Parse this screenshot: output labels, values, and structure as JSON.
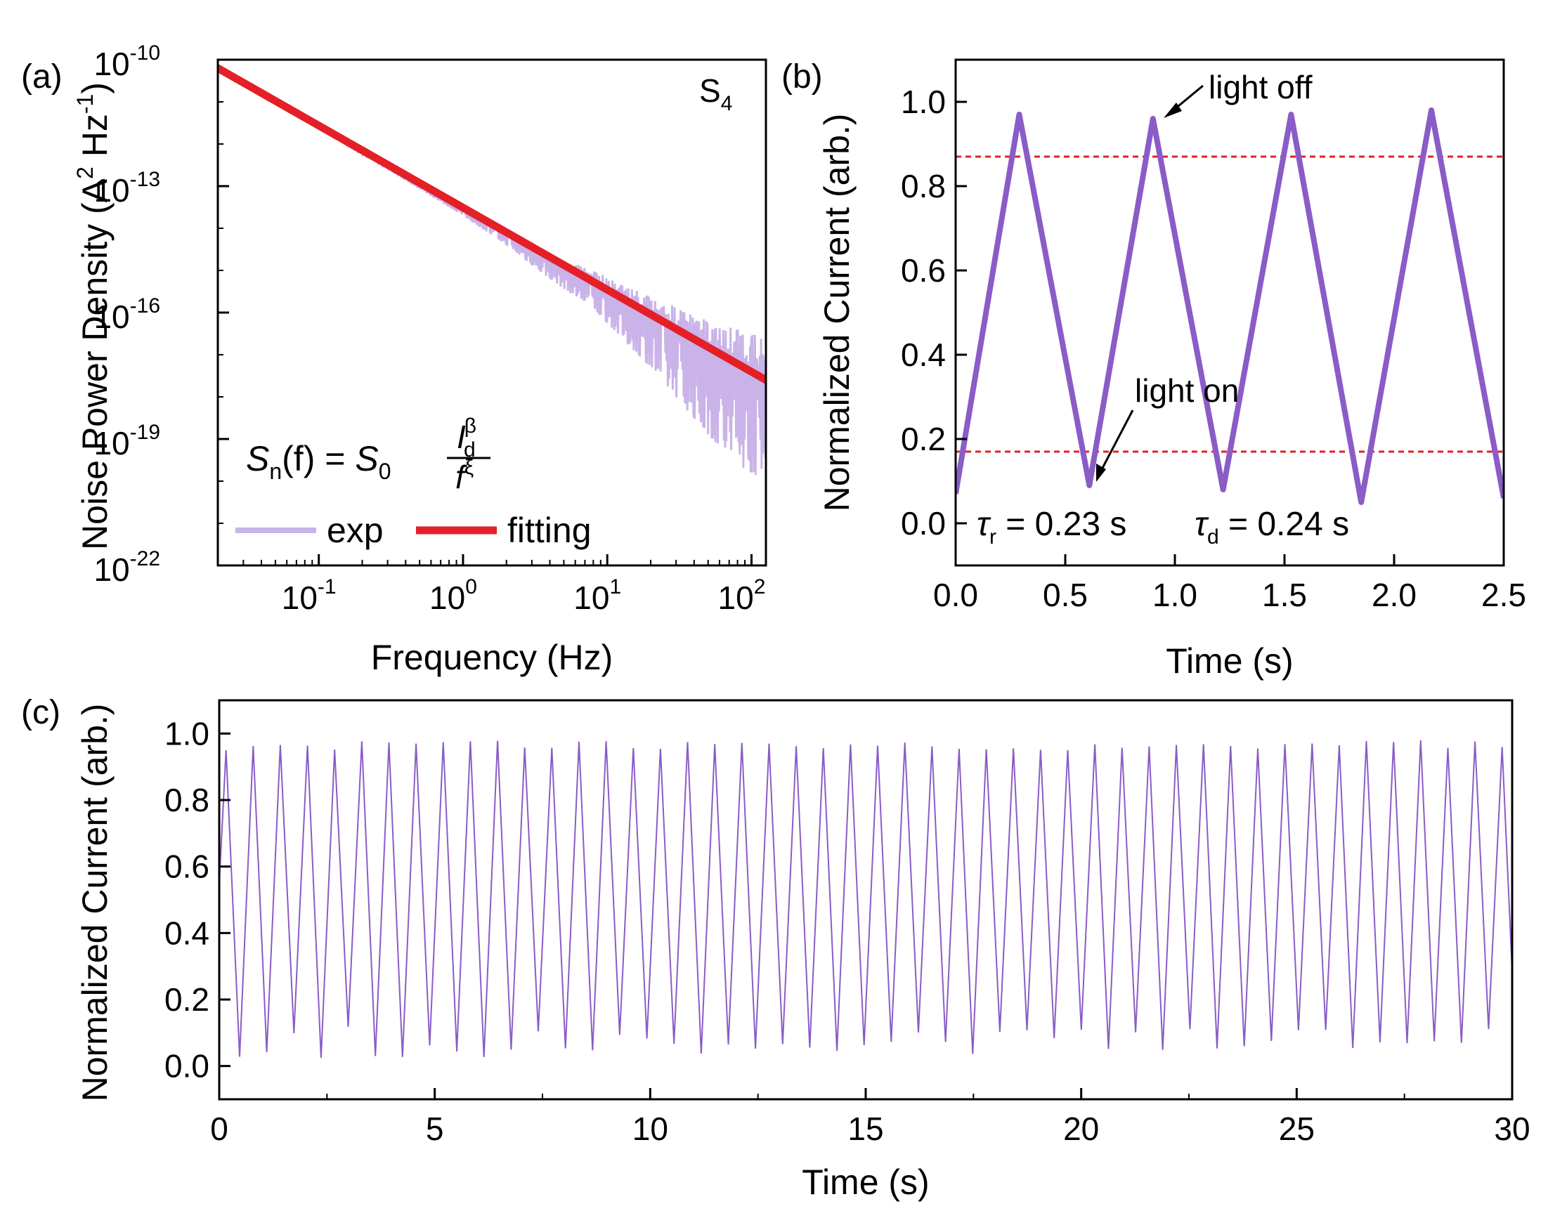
{
  "colors": {
    "exp": "#c9b3e8",
    "fit": "#e41f26",
    "trace": "#8a5cc7",
    "thin_trace": "#8a5cc7",
    "ref_line": "#e41f26",
    "axis": "#000000"
  },
  "chart_data": [
    {
      "id": "a",
      "type": "line",
      "panel_label": "(a)",
      "title": "",
      "xlabel": "Frequency (Hz)",
      "ylabel": "Noise Power Density (A² Hz⁻¹)",
      "ylabel_parts": {
        "main": "Noise Power Density (A",
        "sup1": "2",
        "mid": " Hz",
        "sup2": "-1",
        "end": ")"
      },
      "x_scale": "log",
      "y_scale": "log",
      "xlim_log10": [
        -1.7,
        2.1
      ],
      "ylim_log10": [
        -22,
        -10
      ],
      "x_ticks": [
        {
          "log10": -1,
          "base": "10",
          "exp": "-1"
        },
        {
          "log10": 0,
          "base": "10",
          "exp": "0"
        },
        {
          "log10": 1,
          "base": "10",
          "exp": "1"
        },
        {
          "log10": 2,
          "base": "10",
          "exp": "2"
        }
      ],
      "y_ticks": [
        {
          "log10": -10,
          "base": "10",
          "exp": "-10"
        },
        {
          "log10": -13,
          "base": "10",
          "exp": "-13"
        },
        {
          "log10": -16,
          "base": "10",
          "exp": "-16"
        },
        {
          "log10": -19,
          "base": "10",
          "exp": "-19"
        },
        {
          "log10": -22,
          "base": "10",
          "exp": "-22"
        }
      ],
      "sample_label": {
        "main": "S",
        "sub": "4"
      },
      "formula": {
        "lhs": "S",
        "lhs_sub": "n",
        "lhs_arg": "(f) = ",
        "rhs": "S",
        "rhs_sub": "0",
        "numerator": "I",
        "numerator_sup": "β",
        "numerator_sub": "d",
        "denominator": "f",
        "denominator_sup": "ξ"
      },
      "legend": [
        {
          "name": "exp",
          "color": "#c9b3e8"
        },
        {
          "name": "fitting",
          "color": "#e41f26"
        }
      ],
      "series": [
        {
          "name": "fitting",
          "log10_x": [
            -1.7,
            2.1
          ],
          "log10_y": [
            -10.2,
            -17.6
          ]
        },
        {
          "name": "exp",
          "log10_x": [
            -1.7,
            -1.0,
            0.0,
            0.3,
            0.6,
            0.9,
            1.1,
            1.3,
            1.5,
            1.7,
            1.9,
            2.1
          ],
          "log10_y_upper": [
            -10.2,
            -11.6,
            -13.5,
            -14.0,
            -14.6,
            -15.0,
            -15.3,
            -15.6,
            -15.9,
            -16.2,
            -16.4,
            -16.6
          ],
          "log10_y_lower": [
            -10.2,
            -11.6,
            -13.7,
            -14.4,
            -15.2,
            -15.9,
            -16.6,
            -17.3,
            -18.1,
            -18.9,
            -19.6,
            -20.0
          ]
        }
      ]
    },
    {
      "id": "b",
      "type": "line",
      "panel_label": "(b)",
      "xlabel": "Time (s)",
      "ylabel": "Normalized Current (arb.)",
      "xlim": [
        0,
        2.5
      ],
      "ylim": [
        -0.1,
        1.1
      ],
      "x_ticks": [
        "0.0",
        "0.5",
        "1.0",
        "1.5",
        "2.0",
        "2.5"
      ],
      "y_ticks": [
        "0.0",
        "0.2",
        "0.4",
        "0.6",
        "0.8",
        "1.0"
      ],
      "reference_lines": [
        0.87,
        0.17
      ],
      "annotations": [
        {
          "text": "light off",
          "x": 0.9,
          "y": 0.96
        },
        {
          "text": "light on",
          "x": 0.6,
          "y": 0.09
        }
      ],
      "time_constants": [
        {
          "symbol": "τ",
          "sub": "r",
          "text": " = 0.23 s"
        },
        {
          "symbol": "τ",
          "sub": "d",
          "text": " = 0.24 s"
        }
      ],
      "series": [
        {
          "name": "normalized current",
          "x": [
            0.0,
            0.29,
            0.61,
            0.9,
            1.22,
            1.53,
            1.85,
            2.17,
            2.5
          ],
          "y": [
            0.07,
            0.97,
            0.09,
            0.96,
            0.08,
            0.97,
            0.05,
            0.98,
            0.06
          ]
        }
      ]
    },
    {
      "id": "c",
      "type": "line",
      "panel_label": "(c)",
      "xlabel": "Time (s)",
      "ylabel": "Normalized Current (arb.)",
      "xlim": [
        0,
        30
      ],
      "ylim": [
        -0.1,
        1.1
      ],
      "x_ticks": [
        "0",
        "5",
        "10",
        "15",
        "20",
        "25",
        "30"
      ],
      "y_ticks": [
        "0.0",
        "0.2",
        "0.4",
        "0.6",
        "0.8",
        "1.0"
      ],
      "series": [
        {
          "name": "normalized current",
          "period_s": 0.63,
          "cycles": 47,
          "peak_range": [
            0.95,
            0.98
          ],
          "valley_range": [
            0.02,
            0.12
          ]
        }
      ]
    }
  ]
}
